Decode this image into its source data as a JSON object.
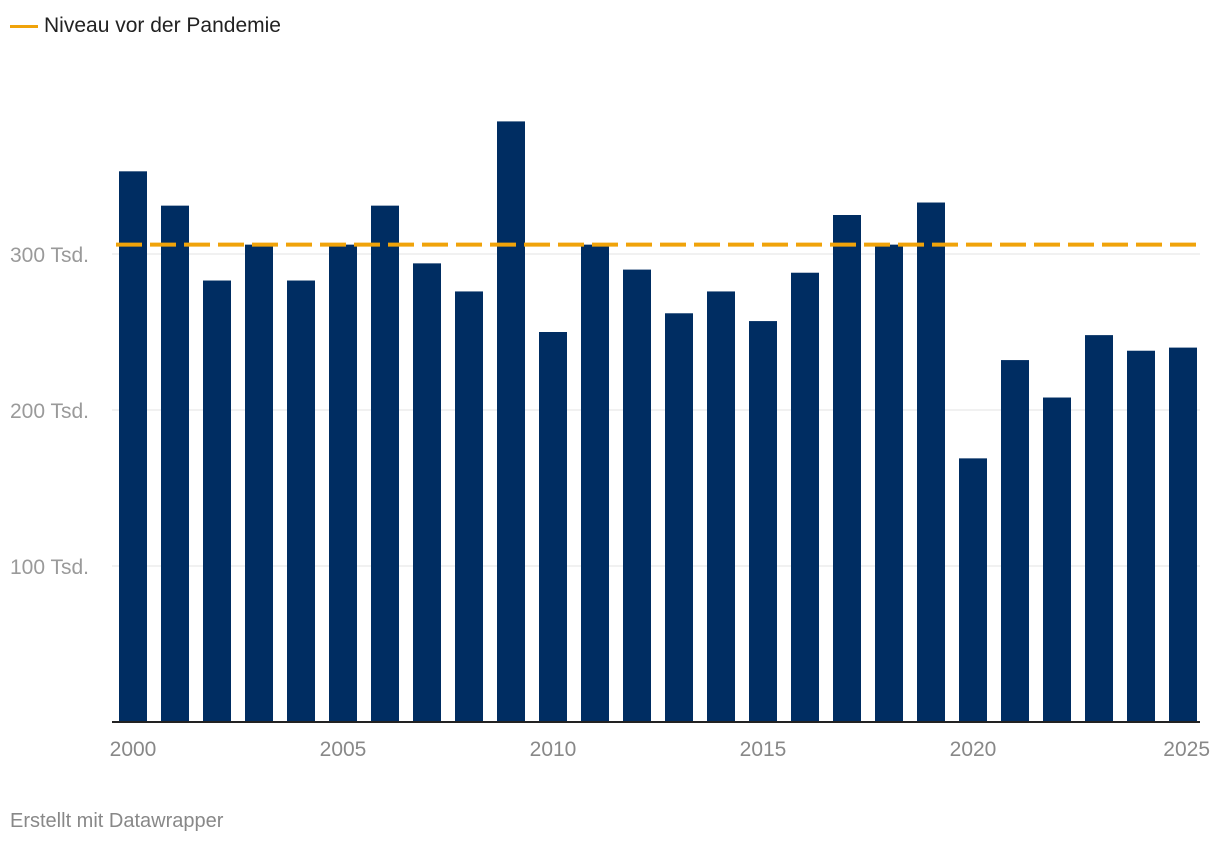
{
  "legend": {
    "items": [
      {
        "label": "Niveau vor der Pandemie",
        "color": "#f0a30a"
      }
    ]
  },
  "footer": {
    "credit": "Erstellt mit Datawrapper"
  },
  "colors": {
    "bar": "#002d62",
    "reference": "#f0a30a",
    "grid": "#e3e3e3",
    "axis": "#222222"
  },
  "chart_data": {
    "type": "bar",
    "categories": [
      2000,
      2001,
      2002,
      2003,
      2004,
      2005,
      2006,
      2007,
      2008,
      2009,
      2010,
      2011,
      2012,
      2013,
      2014,
      2015,
      2016,
      2017,
      2018,
      2019,
      2020,
      2021,
      2022,
      2023,
      2024,
      2025
    ],
    "values": [
      353,
      331,
      283,
      306,
      283,
      306,
      331,
      294,
      276,
      385,
      250,
      306,
      290,
      262,
      276,
      257,
      288,
      325,
      306,
      333,
      169,
      232,
      208,
      248,
      238,
      240
    ],
    "reference_line": {
      "value": 306,
      "label": "Niveau vor der Pandemie",
      "style": "dashed"
    },
    "ylim": [
      0,
      400
    ],
    "yticks": [
      {
        "value": 100,
        "label": "100 Tsd."
      },
      {
        "value": 200,
        "label": "200 Tsd."
      },
      {
        "value": 300,
        "label": "300 Tsd."
      }
    ],
    "xticks": [
      2000,
      2005,
      2010,
      2015,
      2020,
      2025
    ],
    "grid": true,
    "legend_position": "top-left"
  }
}
